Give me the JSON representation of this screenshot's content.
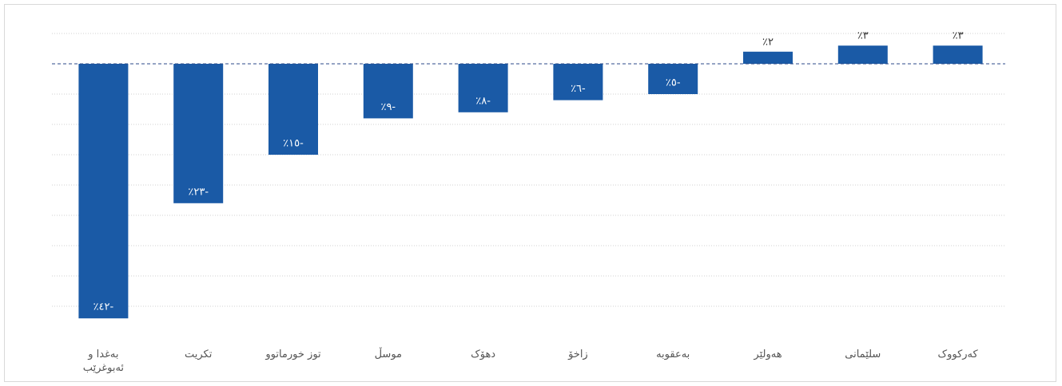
{
  "chart_data": {
    "type": "bar",
    "categories": [
      "بەغدا و ئەبوغرێب",
      "تکریت",
      "توز خورماتوو",
      "موسڵ",
      "دهۆک",
      "زاخۆ",
      "بەعقوبە",
      "هەولێر",
      "سلێمانی",
      "کەرکووک"
    ],
    "values": [
      -42,
      -23,
      -15,
      -9,
      -8,
      -6,
      -5,
      2,
      3,
      3
    ],
    "value_labels": [
      "٪٤٢-",
      "٪٢٣-",
      "٪١٥-",
      "٪٩-",
      "٪٨-",
      "٪٦-",
      "٪٥-",
      "٪٢",
      "٪٣",
      "٪٣"
    ],
    "color": "#1a5aa6",
    "ylim": [
      -44,
      6
    ],
    "yticks": [
      5,
      0,
      -5,
      -10,
      -15,
      -20,
      -25,
      -30,
      -35,
      -40
    ],
    "grid": true
  }
}
